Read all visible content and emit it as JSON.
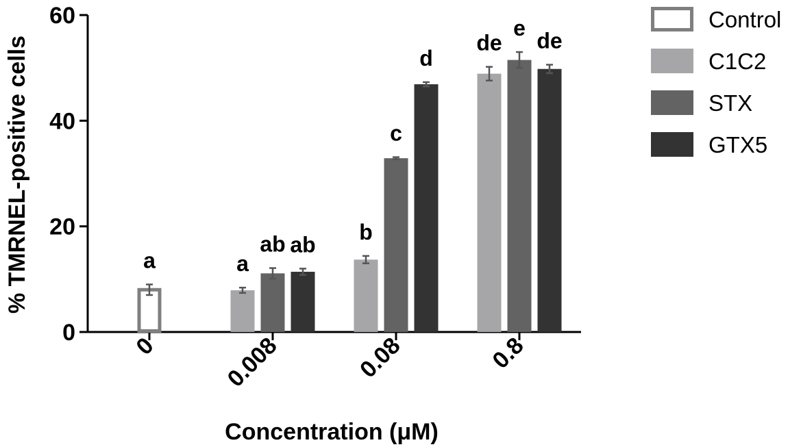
{
  "chart_data": {
    "type": "bar",
    "title": "",
    "xlabel": "Concentration (μM)",
    "ylabel": "% TMRNEL-positive cells",
    "ylim": [
      0,
      60
    ],
    "yticks": [
      0,
      20,
      40,
      60
    ],
    "categories": [
      "0",
      "0.008",
      "0.08",
      "0.8"
    ],
    "grid": false,
    "legend_position": "right",
    "series": [
      {
        "name": "Control",
        "color": "#7f7f7f",
        "style": "outline",
        "values": [
          8,
          null,
          null,
          null
        ],
        "errors": [
          1,
          null,
          null,
          null
        ],
        "labels": [
          "a",
          "",
          "",
          ""
        ]
      },
      {
        "name": "C1C2",
        "color": "#a6a6a8",
        "style": "filled",
        "values": [
          null,
          7.9,
          13.7,
          48.9
        ],
        "errors": [
          null,
          0.5,
          0.7,
          1.3
        ],
        "labels": [
          "",
          "a",
          "b",
          "de"
        ]
      },
      {
        "name": "STX",
        "color": "#636363",
        "style": "filled",
        "values": [
          null,
          11.1,
          32.9,
          51.5
        ],
        "errors": [
          null,
          1.0,
          0.2,
          1.5
        ],
        "labels": [
          "",
          "ab",
          "c",
          "e"
        ]
      },
      {
        "name": "GTX5",
        "color": "#333333",
        "style": "filled",
        "values": [
          null,
          11.4,
          46.9,
          49.8
        ],
        "errors": [
          null,
          0.6,
          0.4,
          0.8
        ],
        "labels": [
          "",
          "ab",
          "d",
          "de"
        ]
      }
    ]
  }
}
